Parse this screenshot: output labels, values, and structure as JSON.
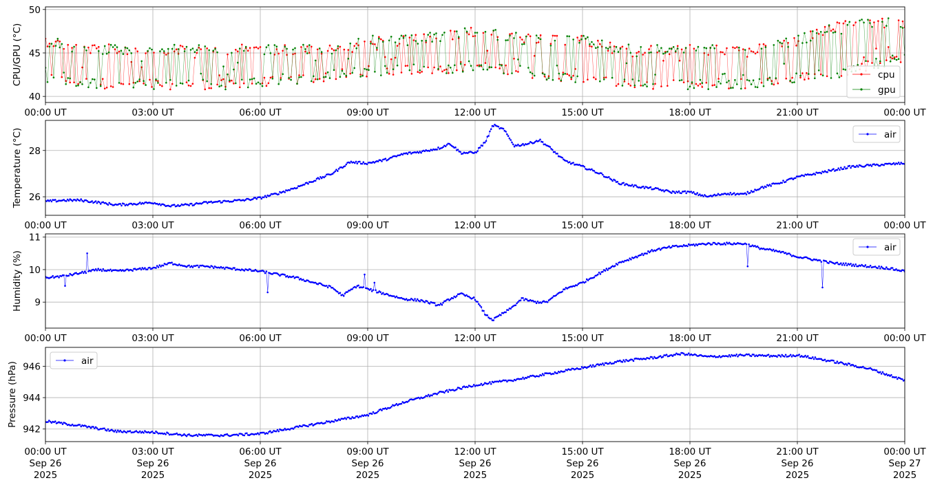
{
  "chart_data": [
    {
      "type": "line",
      "ylabel": "CPU/GPU (°C)",
      "ylim": [
        39.3,
        50.3
      ],
      "yticks": [
        40,
        45,
        50
      ],
      "xlim_hours": [
        0,
        24
      ],
      "xticks": [
        "00:00 UT",
        "03:00 UT",
        "06:00 UT",
        "09:00 UT",
        "12:00 UT",
        "15:00 UT",
        "18:00 UT",
        "21:00 UT",
        "00:00 UT"
      ],
      "grid": true,
      "legend": "bottom-right",
      "series": [
        {
          "name": "cpu",
          "color": "#ff0000",
          "x_hours": [
            0,
            1,
            2,
            3,
            4,
            5,
            6,
            7,
            8,
            9,
            10,
            11,
            12,
            13,
            14,
            15,
            16,
            17,
            18,
            19,
            20,
            21,
            22,
            23,
            24
          ],
          "low": [
            41.5,
            41,
            40.8,
            40.8,
            40.8,
            40.8,
            41,
            41.3,
            41.8,
            42.3,
            42.5,
            42.5,
            43,
            42.5,
            41.8,
            41.3,
            41,
            40.8,
            40.8,
            40.8,
            41,
            41.5,
            42,
            43,
            44
          ],
          "high": [
            47,
            46,
            46,
            46,
            46,
            46,
            46,
            46,
            46,
            47,
            47,
            47.5,
            48,
            47.5,
            47,
            47,
            46,
            46,
            46,
            46,
            46,
            47,
            48.5,
            49,
            49
          ]
        },
        {
          "name": "gpu",
          "color": "#008000",
          "x_hours": [
            0,
            1,
            2,
            3,
            4,
            5,
            6,
            7,
            8,
            9,
            10,
            11,
            12,
            13,
            14,
            15,
            16,
            17,
            18,
            19,
            20,
            21,
            22,
            23,
            24
          ],
          "low": [
            41.5,
            41,
            40.8,
            40.8,
            40.8,
            40.8,
            41,
            41.3,
            41.8,
            42.3,
            42.5,
            42.5,
            43,
            42.5,
            41.8,
            41.3,
            41,
            40.8,
            40.8,
            40.8,
            41,
            41.5,
            42,
            43,
            44
          ],
          "high": [
            47,
            46,
            46,
            46,
            46,
            46,
            46,
            46,
            46,
            47,
            47,
            47.5,
            48,
            47.5,
            47,
            47,
            46,
            46,
            46,
            46,
            46,
            47,
            48.5,
            49,
            49
          ]
        }
      ]
    },
    {
      "type": "line",
      "ylabel": "Temperature (°C)",
      "ylim": [
        25.2,
        29.3
      ],
      "yticks": [
        26,
        28
      ],
      "xticks": [
        "00:00 UT",
        "03:00 UT",
        "06:00 UT",
        "09:00 UT",
        "12:00 UT",
        "15:00 UT",
        "18:00 UT",
        "21:00 UT",
        "00:00 UT"
      ],
      "grid": true,
      "legend": "top-right",
      "series": [
        {
          "name": "air",
          "color": "#0000ff",
          "x_hours": [
            0,
            0.5,
            1,
            1.5,
            2,
            2.5,
            3,
            3.5,
            4,
            4.5,
            5,
            5.5,
            6,
            6.5,
            7,
            7.5,
            8,
            8.5,
            9,
            9.5,
            10,
            10.5,
            11,
            11.3,
            11.6,
            12,
            12.3,
            12.5,
            12.8,
            13.1,
            13.5,
            13.8,
            14.1,
            14.5,
            15,
            15.5,
            16,
            16.5,
            17,
            17.5,
            18,
            18.5,
            19,
            19.5,
            20,
            20.5,
            21,
            21.5,
            22,
            22.5,
            23,
            23.5,
            24
          ],
          "values": [
            25.8,
            25.85,
            25.85,
            25.75,
            25.65,
            25.7,
            25.75,
            25.6,
            25.65,
            25.75,
            25.8,
            25.85,
            25.95,
            26.15,
            26.4,
            26.7,
            27.0,
            27.5,
            27.45,
            27.6,
            27.85,
            27.95,
            28.1,
            28.3,
            27.9,
            27.9,
            28.4,
            29.1,
            28.9,
            28.2,
            28.3,
            28.45,
            28.1,
            27.55,
            27.3,
            27.0,
            26.6,
            26.45,
            26.35,
            26.2,
            26.2,
            26.0,
            26.15,
            26.1,
            26.4,
            26.6,
            26.85,
            27.0,
            27.15,
            27.3,
            27.35,
            27.4,
            27.45
          ]
        }
      ]
    },
    {
      "type": "line",
      "ylabel": "Humidity (%)",
      "ylim": [
        8.2,
        11.1
      ],
      "yticks": [
        9,
        10,
        11
      ],
      "xticks": [
        "00:00 UT",
        "03:00 UT",
        "06:00 UT",
        "09:00 UT",
        "12:00 UT",
        "15:00 UT",
        "18:00 UT",
        "21:00 UT",
        "00:00 UT"
      ],
      "grid": true,
      "legend": "top-right",
      "series": [
        {
          "name": "air",
          "color": "#0000ff",
          "x_hours": [
            0,
            0.5,
            1,
            1.5,
            2,
            2.5,
            3,
            3.5,
            4,
            4.5,
            5,
            5.5,
            6,
            6.5,
            7,
            7.5,
            8,
            8.3,
            8.7,
            9,
            9.5,
            10,
            10.5,
            11,
            11.3,
            11.6,
            12,
            12.3,
            12.5,
            12.7,
            13,
            13.3,
            13.7,
            14,
            14.5,
            15,
            15.5,
            16,
            16.5,
            17,
            17.5,
            18,
            18.5,
            19,
            19.5,
            20,
            20.5,
            21,
            21.5,
            22,
            22.5,
            23,
            23.5,
            24
          ],
          "values": [
            9.75,
            9.8,
            9.9,
            10.0,
            9.95,
            10.0,
            10.05,
            10.2,
            10.1,
            10.1,
            10.05,
            10.0,
            9.95,
            9.85,
            9.75,
            9.6,
            9.45,
            9.2,
            9.5,
            9.4,
            9.25,
            9.1,
            9.05,
            8.9,
            9.1,
            9.25,
            9.1,
            8.6,
            8.45,
            8.6,
            8.8,
            9.1,
            9.0,
            9.0,
            9.4,
            9.6,
            9.9,
            10.2,
            10.4,
            10.6,
            10.7,
            10.75,
            10.8,
            10.8,
            10.8,
            10.65,
            10.55,
            10.4,
            10.3,
            10.2,
            10.15,
            10.1,
            10.05,
            9.95
          ],
          "spikes": [
            [
              0.55,
              9.5
            ],
            [
              1.15,
              10.5
            ],
            [
              6.2,
              9.3
            ],
            [
              8.9,
              9.85
            ],
            [
              9.2,
              9.6
            ],
            [
              13.0,
              8.8
            ],
            [
              19.6,
              10.1
            ],
            [
              21.7,
              9.45
            ]
          ]
        }
      ]
    },
    {
      "type": "line",
      "ylabel": "Pressure (hPa)",
      "ylim": [
        941.2,
        947.2
      ],
      "yticks": [
        942,
        944,
        946
      ],
      "xticks": [
        "00:00 UT",
        "03:00 UT",
        "06:00 UT",
        "09:00 UT",
        "12:00 UT",
        "15:00 UT",
        "18:00 UT",
        "21:00 UT",
        "00:00 UT"
      ],
      "xticks_line2": [
        "Sep 26",
        "Sep 26",
        "Sep 26",
        "Sep 26",
        "Sep 26",
        "Sep 26",
        "Sep 26",
        "Sep 26",
        "Sep 27"
      ],
      "xticks_line3": [
        "2025",
        "2025",
        "2025",
        "2025",
        "2025",
        "2025",
        "2025",
        "2025",
        "2025"
      ],
      "grid": true,
      "legend": "top-left",
      "series": [
        {
          "name": "air",
          "color": "#0000ff",
          "x_hours": [
            0,
            1,
            2,
            3,
            4,
            5,
            6,
            7,
            8,
            9,
            10,
            11,
            12,
            13,
            14,
            15,
            16,
            17,
            17.8,
            18.5,
            19.5,
            20.5,
            21,
            22,
            23,
            24
          ],
          "values": [
            942.5,
            942.2,
            941.85,
            941.8,
            941.6,
            941.6,
            941.7,
            942.1,
            942.5,
            942.9,
            943.7,
            944.3,
            944.8,
            945.1,
            945.5,
            945.9,
            946.3,
            946.55,
            946.8,
            946.6,
            946.7,
            946.65,
            946.7,
            946.3,
            945.85,
            945.1
          ]
        }
      ]
    }
  ]
}
